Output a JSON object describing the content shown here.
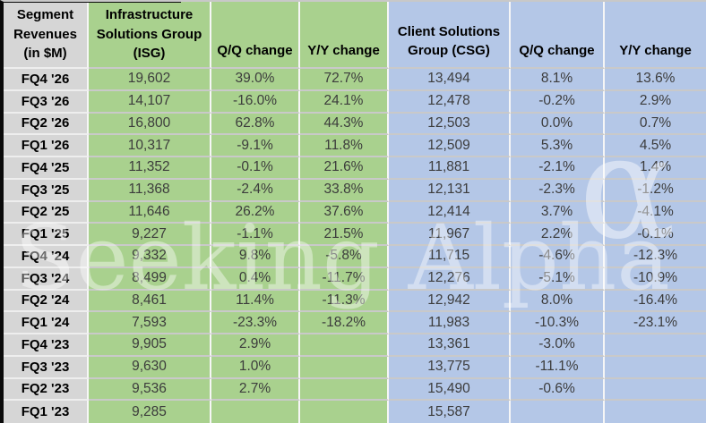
{
  "watermark": {
    "text": "Seeking Alpha",
    "symbol": "α"
  },
  "colors": {
    "label_fill": "#d6d6d6",
    "isg_fill": "#a9d18e",
    "csg_fill": "#b4c7e7",
    "header_text": "#000000",
    "value_text": "#3c3c3c",
    "gridline": "#c9c9c9",
    "outer_border": "#0a0a0a"
  },
  "headers": {
    "segment": "Segment\nRevenues\n(in $M)",
    "isg": "Infrastructure\nSolutions Group\n(ISG)",
    "isg_qq": "Q/Q change",
    "isg_yy": "Y/Y change",
    "csg": "Client Solutions\nGroup (CSG)",
    "csg_qq": "Q/Q change",
    "csg_yy": "Y/Y change"
  },
  "chart_data": {
    "type": "table",
    "title": "Segment Revenues (in $M)",
    "columns": [
      "Segment Revenues (in $M)",
      "Infrastructure Solutions Group (ISG)",
      "Q/Q change",
      "Y/Y change",
      "Client Solutions Group (CSG)",
      "Q/Q change",
      "Y/Y change"
    ],
    "rows": [
      [
        "FQ4 '26",
        "19,602",
        "39.0%",
        "72.7%",
        "13,494",
        "8.1%",
        "13.6%"
      ],
      [
        "FQ3 '26",
        "14,107",
        "-16.0%",
        "24.1%",
        "12,478",
        "-0.2%",
        "2.9%"
      ],
      [
        "FQ2 '26",
        "16,800",
        "62.8%",
        "44.3%",
        "12,503",
        "0.0%",
        "0.7%"
      ],
      [
        "FQ1 '26",
        "10,317",
        "-9.1%",
        "11.8%",
        "12,509",
        "5.3%",
        "4.5%"
      ],
      [
        "FQ4 '25",
        "11,352",
        "-0.1%",
        "21.6%",
        "11,881",
        "-2.1%",
        "1.4%"
      ],
      [
        "FQ3 '25",
        "11,368",
        "-2.4%",
        "33.8%",
        "12,131",
        "-2.3%",
        "-1.2%"
      ],
      [
        "FQ2 '25",
        "11,646",
        "26.2%",
        "37.6%",
        "12,414",
        "3.7%",
        "-4.1%"
      ],
      [
        "FQ1 '25",
        "9,227",
        "-1.1%",
        "21.5%",
        "11,967",
        "2.2%",
        "-0.1%"
      ],
      [
        "FQ4 '24",
        "9,332",
        "9.8%",
        "-5.8%",
        "11,715",
        "-4.6%",
        "-12.3%"
      ],
      [
        "FQ3 '24",
        "8,499",
        "0.4%",
        "-11.7%",
        "12,276",
        "-5.1%",
        "-10.9%"
      ],
      [
        "FQ2 '24",
        "8,461",
        "11.4%",
        "-11.3%",
        "12,942",
        "8.0%",
        "-16.4%"
      ],
      [
        "FQ1 '24",
        "7,593",
        "-23.3%",
        "-18.2%",
        "11,983",
        "-10.3%",
        "-23.1%"
      ],
      [
        "FQ4 '23",
        "9,905",
        "2.9%",
        "",
        "13,361",
        "-3.0%",
        ""
      ],
      [
        "FQ3 '23",
        "9,630",
        "1.0%",
        "",
        "13,775",
        "-11.1%",
        ""
      ],
      [
        "FQ2 '23",
        "9,536",
        "2.7%",
        "",
        "15,490",
        "-0.6%",
        ""
      ],
      [
        "FQ1 '23",
        "9,285",
        "",
        "",
        "15,587",
        "",
        ""
      ]
    ]
  }
}
